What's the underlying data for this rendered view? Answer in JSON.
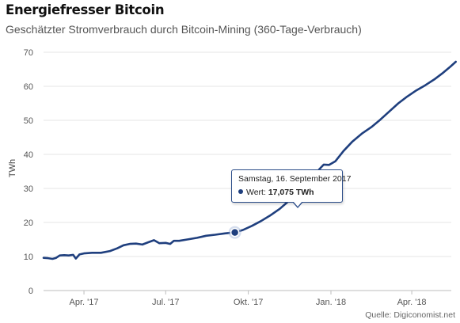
{
  "chart_data": {
    "type": "line",
    "title": "Energiefresser Bitcoin",
    "subtitle": "Geschätzter Stromverbrauch durch Bitcoin-Mining (360-Tage-Verbrauch)",
    "ylabel": "TWh",
    "xlabel": "",
    "ylim": [
      0,
      70
    ],
    "yticks": [
      0,
      10,
      20,
      30,
      40,
      50,
      60,
      70
    ],
    "xlim": [
      "2017-02-15",
      "2018-05-15"
    ],
    "xticks": [
      {
        "date": "2017-04-01",
        "label": "Apr. '17"
      },
      {
        "date": "2017-07-01",
        "label": "Jul. '17"
      },
      {
        "date": "2017-10-01",
        "label": "Okt. '17"
      },
      {
        "date": "2018-01-01",
        "label": "Jan. '18"
      },
      {
        "date": "2018-04-01",
        "label": "Apr. '18"
      }
    ],
    "grid": "horizontal",
    "line_color": "#1f3f7e",
    "series": [
      {
        "points": [
          [
            "2017-02-15",
            9.6
          ],
          [
            "2017-02-20",
            9.5
          ],
          [
            "2017-02-25",
            9.3
          ],
          [
            "2017-03-01",
            9.6
          ],
          [
            "2017-03-05",
            10.3
          ],
          [
            "2017-03-10",
            10.4
          ],
          [
            "2017-03-15",
            10.3
          ],
          [
            "2017-03-20",
            10.5
          ],
          [
            "2017-03-23",
            9.4
          ],
          [
            "2017-03-27",
            10.6
          ],
          [
            "2017-04-01",
            10.9
          ],
          [
            "2017-04-10",
            11.1
          ],
          [
            "2017-04-20",
            11.1
          ],
          [
            "2017-04-30",
            11.6
          ],
          [
            "2017-05-08",
            12.4
          ],
          [
            "2017-05-15",
            13.3
          ],
          [
            "2017-05-22",
            13.7
          ],
          [
            "2017-05-29",
            13.8
          ],
          [
            "2017-06-05",
            13.5
          ],
          [
            "2017-06-12",
            14.2
          ],
          [
            "2017-06-18",
            14.8
          ],
          [
            "2017-06-24",
            13.9
          ],
          [
            "2017-07-01",
            14.0
          ],
          [
            "2017-07-06",
            13.7
          ],
          [
            "2017-07-10",
            14.6
          ],
          [
            "2017-07-16",
            14.6
          ],
          [
            "2017-07-25",
            15.0
          ],
          [
            "2017-08-05",
            15.5
          ],
          [
            "2017-08-15",
            16.1
          ],
          [
            "2017-08-25",
            16.4
          ],
          [
            "2017-09-05",
            16.8
          ],
          [
            "2017-09-16",
            17.075
          ],
          [
            "2017-09-25",
            17.8
          ],
          [
            "2017-10-05",
            19.0
          ],
          [
            "2017-10-15",
            20.4
          ],
          [
            "2017-10-25",
            22.0
          ],
          [
            "2017-11-05",
            24.0
          ],
          [
            "2017-11-15",
            26.3
          ],
          [
            "2017-11-25",
            28.5
          ],
          [
            "2017-12-05",
            31.0
          ],
          [
            "2017-12-12",
            33.3
          ],
          [
            "2017-12-19",
            35.6
          ],
          [
            "2017-12-24",
            37.0
          ],
          [
            "2017-12-30",
            36.9
          ],
          [
            "2018-01-06",
            38.0
          ],
          [
            "2018-01-15",
            41.0
          ],
          [
            "2018-01-25",
            43.8
          ],
          [
            "2018-02-05",
            46.2
          ],
          [
            "2018-02-15",
            48.0
          ],
          [
            "2018-02-25",
            50.2
          ],
          [
            "2018-03-07",
            52.6
          ],
          [
            "2018-03-17",
            55.0
          ],
          [
            "2018-03-27",
            57.0
          ],
          [
            "2018-04-06",
            58.8
          ],
          [
            "2018-04-16",
            60.3
          ],
          [
            "2018-04-26",
            62.0
          ],
          [
            "2018-05-06",
            64.0
          ],
          [
            "2018-05-14",
            65.8
          ],
          [
            "2018-05-20",
            67.2
          ]
        ]
      }
    ],
    "highlight": {
      "date": "2017-09-16",
      "value": 17.075
    }
  },
  "tooltip": {
    "date_text": "Samstag, 16. September 2017",
    "label": "Wert: ",
    "value": "17,075 TWh"
  },
  "source": "Quelle: Digiconomist.net"
}
